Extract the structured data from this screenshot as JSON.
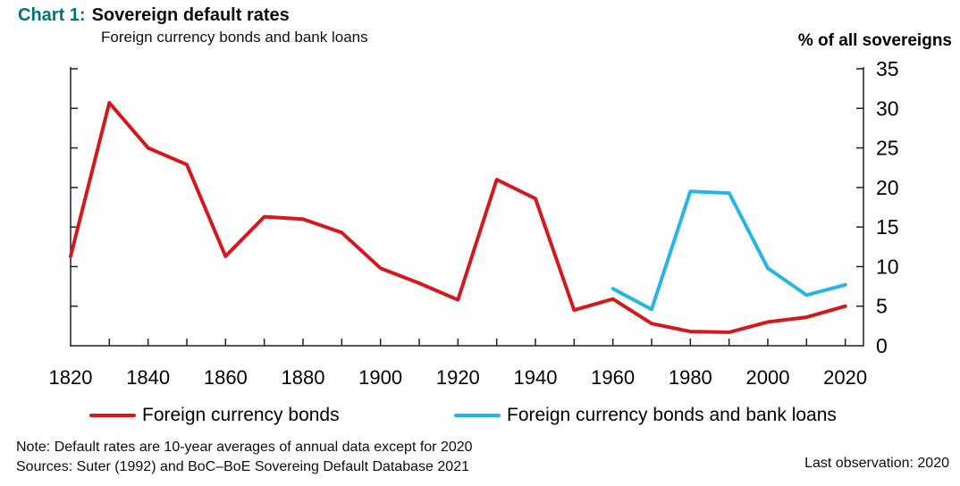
{
  "header": {
    "title_prefix": "Chart 1:",
    "title": "Sovereign default rates",
    "subtitle": "Foreign currency bonds and bank loans",
    "y_axis_unit_label": "% of all sovereigns"
  },
  "colors": {
    "accent_teal": "#00727c",
    "bonds_red": "#d2191c",
    "loans_blue": "#27b5e5",
    "axis": "#1f1f1f",
    "text": "#000000"
  },
  "chart_data": {
    "type": "line",
    "title": "Sovereign default rates",
    "subtitle": "Foreign currency bonds and bank loans",
    "ylabel": "% of all sovereigns",
    "xlabel": "",
    "xlim": [
      1820,
      2025
    ],
    "ylim": [
      0,
      35
    ],
    "grid": false,
    "legend_position": "bottom",
    "x_tick_labels": [
      1820,
      1840,
      1860,
      1880,
      1900,
      1920,
      1940,
      1960,
      1980,
      2000,
      2020
    ],
    "x_tick_interval_years": 10,
    "y_ticks": [
      0,
      5,
      10,
      15,
      20,
      25,
      30,
      35
    ],
    "series": [
      {
        "name": "Foreign currency bonds",
        "color": "#d2191c",
        "x": [
          1820,
          1830,
          1840,
          1850,
          1860,
          1870,
          1880,
          1890,
          1900,
          1910,
          1920,
          1930,
          1940,
          1950,
          1960,
          1970,
          1980,
          1990,
          2000,
          2010,
          2020
        ],
        "values": [
          11.3,
          30.7,
          25.0,
          22.9,
          11.3,
          16.3,
          16.0,
          14.3,
          9.8,
          7.9,
          5.8,
          21.0,
          18.6,
          4.5,
          5.9,
          2.8,
          1.8,
          1.7,
          3.0,
          3.6,
          5.0
        ]
      },
      {
        "name": "Foreign currency bonds and bank loans",
        "color": "#27b5e5",
        "x": [
          1960,
          1970,
          1980,
          1990,
          2000,
          2010,
          2020
        ],
        "values": [
          7.2,
          4.6,
          19.5,
          19.3,
          9.8,
          6.4,
          7.7
        ]
      }
    ]
  },
  "legend": {
    "items": [
      {
        "label": "Foreign currency bonds",
        "color": "#d2191c"
      },
      {
        "label": "Foreign currency bonds and bank loans",
        "color": "#27b5e5"
      }
    ]
  },
  "footer": {
    "note": "Note: Default rates are 10-year averages of annual data except for 2020",
    "sources": "Sources: Suter (1992) and BoC–BoE Sovereing Default Database 2021",
    "last_observation": "Last observation: 2020"
  }
}
